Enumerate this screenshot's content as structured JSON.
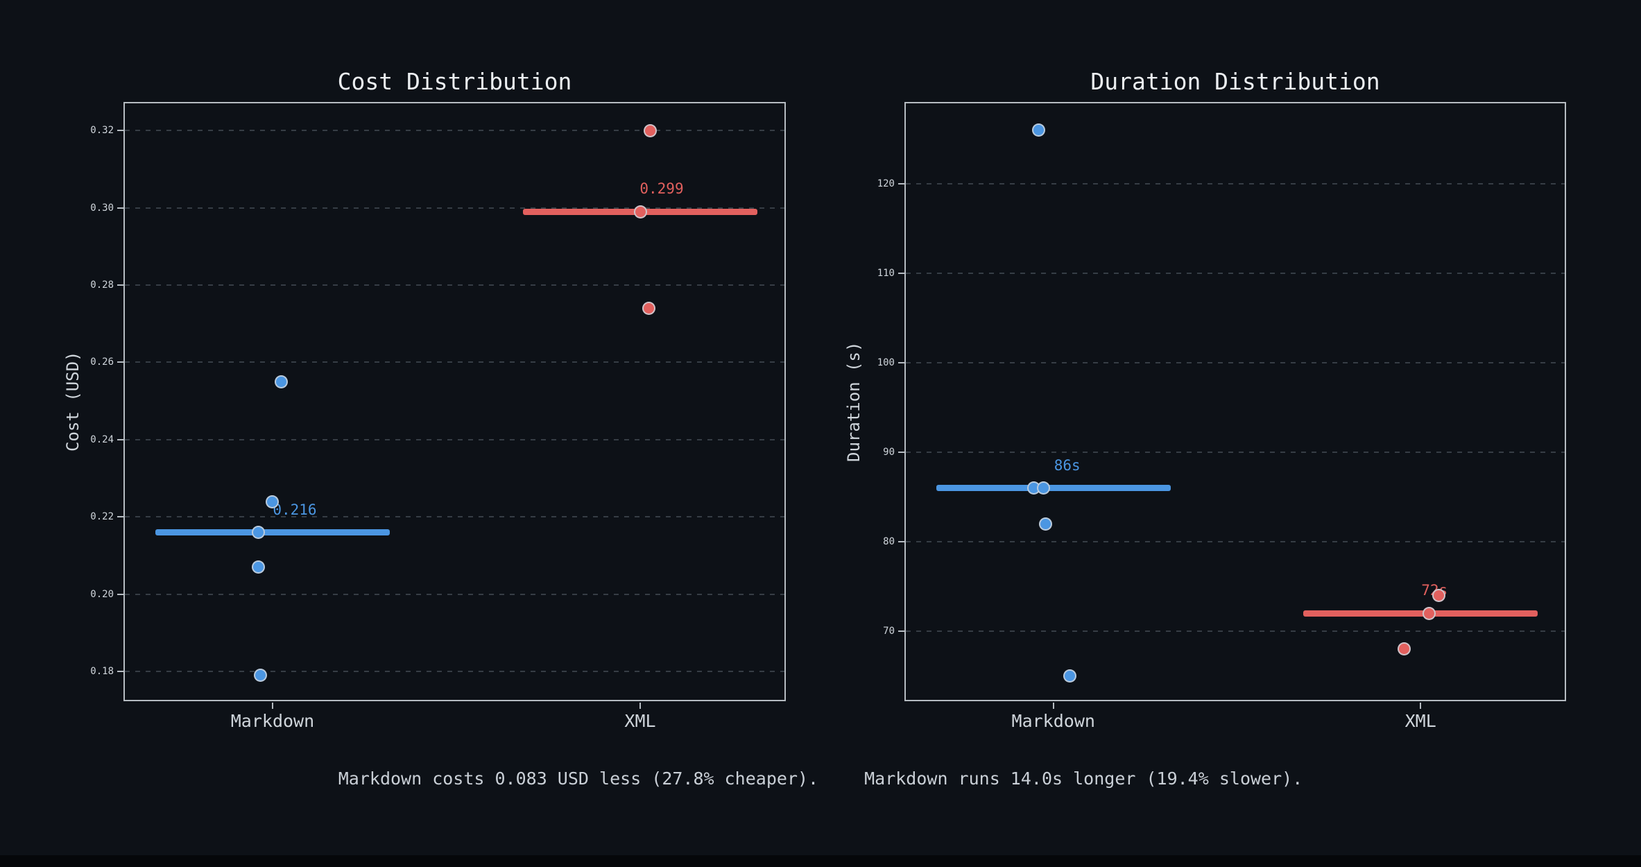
{
  "caption": {
    "cost": "Markdown costs 0.083 USD less (27.8% cheaper).",
    "duration": "Markdown runs 14.0s longer (19.4% slower)."
  },
  "colors": {
    "background": "#0d1117",
    "markdown_blue": "#4b96e2",
    "xml_red": "#e2605e",
    "grid": "#363d45",
    "spine": "#b6bcc2",
    "tick_text": "#cfd5db",
    "title_text": "#eceff2",
    "caption_text": "#c9cfd6"
  },
  "chart_data": [
    {
      "type": "scatter",
      "title": "Cost Distribution",
      "ylabel": "Cost (USD)",
      "categories": [
        "Markdown",
        "XML"
      ],
      "ylim": [
        0.172,
        0.327
      ],
      "yticks": [
        0.18,
        0.2,
        0.22,
        0.24,
        0.26,
        0.28,
        0.3,
        0.32
      ],
      "ytick_labels": [
        "0.18",
        "0.20",
        "0.22",
        "0.24",
        "0.26",
        "0.28",
        "0.30",
        "0.32"
      ],
      "grid": true,
      "legend": false,
      "series": [
        {
          "name": "Markdown",
          "color_key": "markdown_blue",
          "mean": 0.216,
          "mean_label": "0.216",
          "mean_label_dx": 32,
          "points": [
            {
              "v": 0.255,
              "dx": 13
            },
            {
              "v": 0.224,
              "dx": 0
            },
            {
              "v": 0.216,
              "dx": -20
            },
            {
              "v": 0.207,
              "dx": -20
            },
            {
              "v": 0.179,
              "dx": -17
            }
          ]
        },
        {
          "name": "XML",
          "color_key": "xml_red",
          "mean": 0.299,
          "mean_label": "0.299",
          "mean_label_dx": 31,
          "points": [
            {
              "v": 0.32,
              "dx": 15
            },
            {
              "v": 0.299,
              "dx": 1
            },
            {
              "v": 0.274,
              "dx": 13
            }
          ]
        }
      ]
    },
    {
      "type": "scatter",
      "title": "Duration Distribution",
      "ylabel": "Duration (s)",
      "categories": [
        "Markdown",
        "XML"
      ],
      "ylim": [
        62,
        129
      ],
      "yticks": [
        70,
        80,
        90,
        100,
        110,
        120
      ],
      "ytick_labels": [
        "70",
        "80",
        "90",
        "100",
        "110",
        "120"
      ],
      "grid": true,
      "legend": false,
      "series": [
        {
          "name": "Markdown",
          "color_key": "markdown_blue",
          "mean": 86,
          "mean_label": "86s",
          "mean_label_dx": 20,
          "points": [
            {
              "v": 126,
              "dx": -21
            },
            {
              "v": 86,
              "dx": -28
            },
            {
              "v": 86,
              "dx": -14
            },
            {
              "v": 82,
              "dx": -11
            },
            {
              "v": 65,
              "dx": 24
            }
          ]
        },
        {
          "name": "XML",
          "color_key": "xml_red",
          "mean": 72,
          "mean_label": "72s",
          "mean_label_dx": 20,
          "points": [
            {
              "v": 74,
              "dx": 26
            },
            {
              "v": 72,
              "dx": 12
            },
            {
              "v": 68,
              "dx": -24
            }
          ]
        }
      ]
    }
  ]
}
